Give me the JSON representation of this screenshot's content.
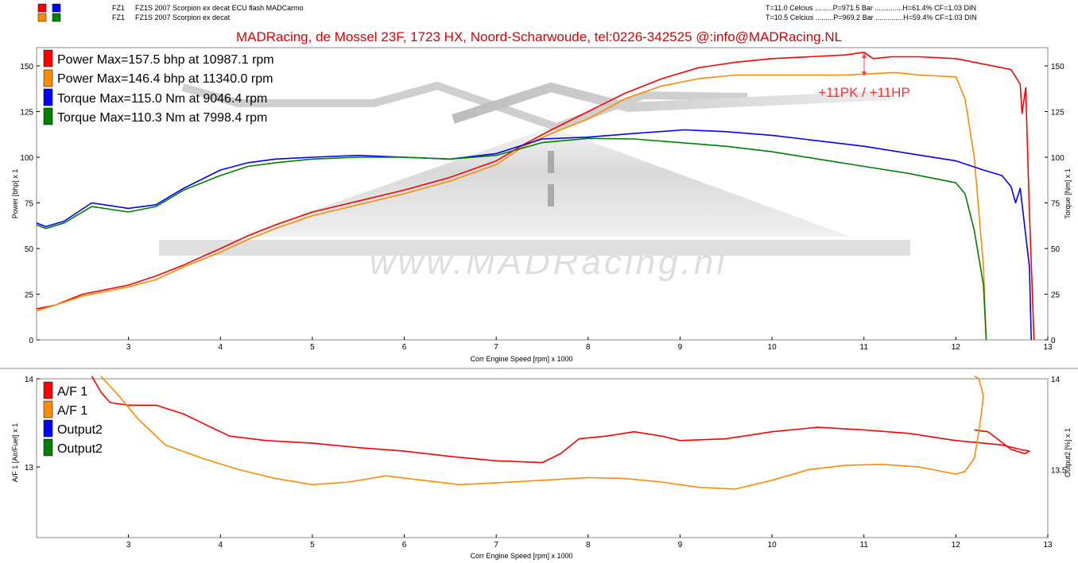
{
  "header": {
    "runs": [
      {
        "label": "FZ1",
        "desc": "FZ1S 2007 Scorpion ex decat ECU flash MADCarmo",
        "conditions": "T=11.0 Celcius .........P=971.5 Bar ..............H=61.4% CF=1.03 DIN",
        "colors": [
          "#ff0000",
          "#0000ff"
        ]
      },
      {
        "label": "FZ1",
        "desc": "FZ1S 2007 Scorpion ex decat",
        "conditions": "T=10.5 Celcius .........P=969.2 Bar ..............H=59.4% CF=1.03 DIN",
        "colors": [
          "#ff8c00",
          "#008000"
        ]
      }
    ],
    "banner": "MADRacing, de Mossel 23F, 1723 HX, Noord-Scharwoude,  tel:0226-342525   @:info@MADRacing.NL"
  },
  "watermark": {
    "text": "www.MADRacing.nl"
  },
  "chart_data": [
    {
      "type": "line",
      "xlabel": "Corr Engine Speed [rpm] x 1000",
      "ylabel": "Power [bhp] x 1",
      "y2label": "Torque [Nm] x 1",
      "xlim": [
        2.0,
        13.0
      ],
      "ylim": [
        0,
        160
      ],
      "y2lim": [
        0,
        160
      ],
      "xticks": [
        3,
        4,
        5,
        6,
        7,
        8,
        9,
        10,
        11,
        12,
        13
      ],
      "yticks": [
        0,
        25,
        50,
        75,
        100,
        125,
        150
      ],
      "annotation": "+11PK / +11HP",
      "legend": [
        {
          "text": "Power  Max=157.5 bhp at 10987.1 rpm",
          "color": "#ff0000"
        },
        {
          "text": "Power  Max=146.4 bhp at 11340.0 rpm",
          "color": "#ff8c00"
        },
        {
          "text": "Torque  Max=115.0 Nm at 9046.4 rpm",
          "color": "#0000ff"
        },
        {
          "text": "Torque  Max=110.3 Nm at 7998.4 rpm",
          "color": "#008000"
        }
      ],
      "series": [
        {
          "color": "#ff0000",
          "x": [
            2.0,
            2.2,
            2.5,
            2.8,
            3.0,
            3.3,
            3.6,
            4.0,
            4.3,
            4.6,
            5.0,
            5.5,
            6.0,
            6.5,
            7.0,
            7.3,
            7.6,
            8.0,
            8.4,
            8.8,
            9.2,
            9.6,
            10.0,
            10.4,
            10.8,
            11.0,
            11.1,
            11.3,
            11.6,
            12.0,
            12.3,
            12.6,
            12.7,
            12.72,
            12.76,
            12.8,
            12.85
          ],
          "y": [
            17,
            19,
            25,
            28,
            30,
            35,
            41,
            50,
            57,
            63,
            70,
            76,
            82,
            89,
            98,
            107,
            115,
            125,
            135,
            143,
            149,
            152,
            154,
            155,
            156,
            157.5,
            154,
            155,
            155,
            154,
            151,
            148,
            140,
            124,
            138,
            70,
            0
          ]
        },
        {
          "color": "#ff8c00",
          "x": [
            2.0,
            2.2,
            2.5,
            2.8,
            3.0,
            3.3,
            3.6,
            4.0,
            4.3,
            4.6,
            5.0,
            5.5,
            6.0,
            6.5,
            7.0,
            7.3,
            7.6,
            8.0,
            8.4,
            8.8,
            9.2,
            9.6,
            10.0,
            10.4,
            10.8,
            11.0,
            11.34,
            11.6,
            12.0,
            12.1,
            12.2,
            12.3,
            12.33
          ],
          "y": [
            16,
            19,
            24,
            27,
            29,
            33,
            40,
            48,
            55,
            61,
            68,
            74,
            80,
            87,
            96,
            106,
            113,
            121,
            132,
            139,
            143,
            145,
            145,
            145,
            145,
            145.5,
            146.4,
            145,
            144,
            132,
            100,
            40,
            0
          ]
        },
        {
          "color": "#0000ff",
          "x": [
            2.0,
            2.1,
            2.3,
            2.6,
            3.0,
            3.3,
            3.6,
            4.0,
            4.3,
            4.6,
            5.0,
            5.5,
            6.0,
            6.5,
            7.0,
            7.5,
            8.0,
            8.5,
            9.05,
            9.5,
            10.0,
            10.5,
            11.0,
            11.5,
            12.0,
            12.3,
            12.5,
            12.6,
            12.65,
            12.7,
            12.8,
            12.82
          ],
          "y": [
            64,
            62,
            65,
            75,
            72,
            74,
            83,
            93,
            97,
            99,
            100,
            101,
            100,
            99,
            102,
            110,
            111,
            113,
            115,
            114,
            112,
            109,
            106,
            102,
            98,
            93,
            90,
            84,
            75,
            83,
            40,
            0
          ]
        },
        {
          "color": "#008000",
          "x": [
            2.0,
            2.1,
            2.3,
            2.6,
            3.0,
            3.3,
            3.6,
            4.0,
            4.3,
            4.6,
            5.0,
            5.5,
            6.0,
            6.5,
            7.0,
            7.5,
            8.0,
            8.5,
            9.0,
            9.5,
            10.0,
            10.5,
            11.0,
            11.5,
            12.0,
            12.1,
            12.2,
            12.3,
            12.33
          ],
          "y": [
            63,
            61,
            64,
            73,
            70,
            73,
            82,
            90,
            95,
            97,
            99,
            100,
            100,
            99,
            101,
            108,
            110.3,
            110,
            108,
            106,
            103,
            99,
            95,
            91,
            86,
            80,
            60,
            30,
            0
          ]
        }
      ]
    },
    {
      "type": "line",
      "xlabel": "Corr Engine Speed [rpm] x 1000",
      "ylabel": "A/F 1 [Air/Fuel] x 1",
      "y2label": "Output2 [%] x 1",
      "xlim": [
        2.0,
        13.0
      ],
      "ylim": [
        12.2,
        14
      ],
      "xticks": [
        3,
        4,
        5,
        6,
        7,
        8,
        9,
        10,
        11,
        12,
        13
      ],
      "yticks": [
        13,
        14
      ],
      "y2ticks": [
        "13.5",
        "14"
      ],
      "legend": [
        {
          "text": "A/F 1",
          "color": "#ff0000"
        },
        {
          "text": "A/F 1",
          "color": "#ff8c00"
        },
        {
          "text": "Output2",
          "color": "#0000ff"
        },
        {
          "text": "Output2",
          "color": "#008000"
        }
      ],
      "series": [
        {
          "color": "#ff0000",
          "x": [
            2.6,
            2.7,
            2.8,
            3.0,
            3.3,
            3.6,
            3.9,
            4.1,
            4.5,
            5.0,
            5.5,
            6.0,
            6.5,
            7.0,
            7.5,
            7.7,
            7.9,
            8.2,
            8.5,
            8.8,
            9.0,
            9.5,
            10.0,
            10.5,
            11.0,
            11.5,
            12.0,
            12.3,
            12.5,
            12.7,
            12.8,
            12.75,
            12.6,
            12.5,
            12.35,
            12.2
          ],
          "y": [
            14.03,
            13.85,
            13.73,
            13.7,
            13.7,
            13.6,
            13.45,
            13.35,
            13.3,
            13.27,
            13.22,
            13.18,
            13.12,
            13.07,
            13.05,
            13.15,
            13.32,
            13.35,
            13.4,
            13.35,
            13.3,
            13.32,
            13.4,
            13.45,
            13.42,
            13.38,
            13.3,
            13.27,
            13.25,
            13.2,
            13.18,
            13.15,
            13.2,
            13.28,
            13.4,
            13.42
          ]
        },
        {
          "color": "#ff8c00",
          "x": [
            2.7,
            2.9,
            3.1,
            3.4,
            3.8,
            4.2,
            4.6,
            5.0,
            5.4,
            5.8,
            6.2,
            6.6,
            7.0,
            7.5,
            8.0,
            8.4,
            8.8,
            9.2,
            9.6,
            10.0,
            10.4,
            10.8,
            11.2,
            11.6,
            12.0,
            12.1,
            12.2,
            12.25,
            12.3,
            12.25,
            12.2
          ],
          "y": [
            14.03,
            13.8,
            13.55,
            13.25,
            13.1,
            12.97,
            12.87,
            12.8,
            12.83,
            12.9,
            12.85,
            12.8,
            12.82,
            12.85,
            12.88,
            12.87,
            12.83,
            12.77,
            12.75,
            12.85,
            12.97,
            13.02,
            13.03,
            13.0,
            12.92,
            12.95,
            13.1,
            13.4,
            13.8,
            14.0,
            14.03
          ]
        }
      ]
    }
  ]
}
